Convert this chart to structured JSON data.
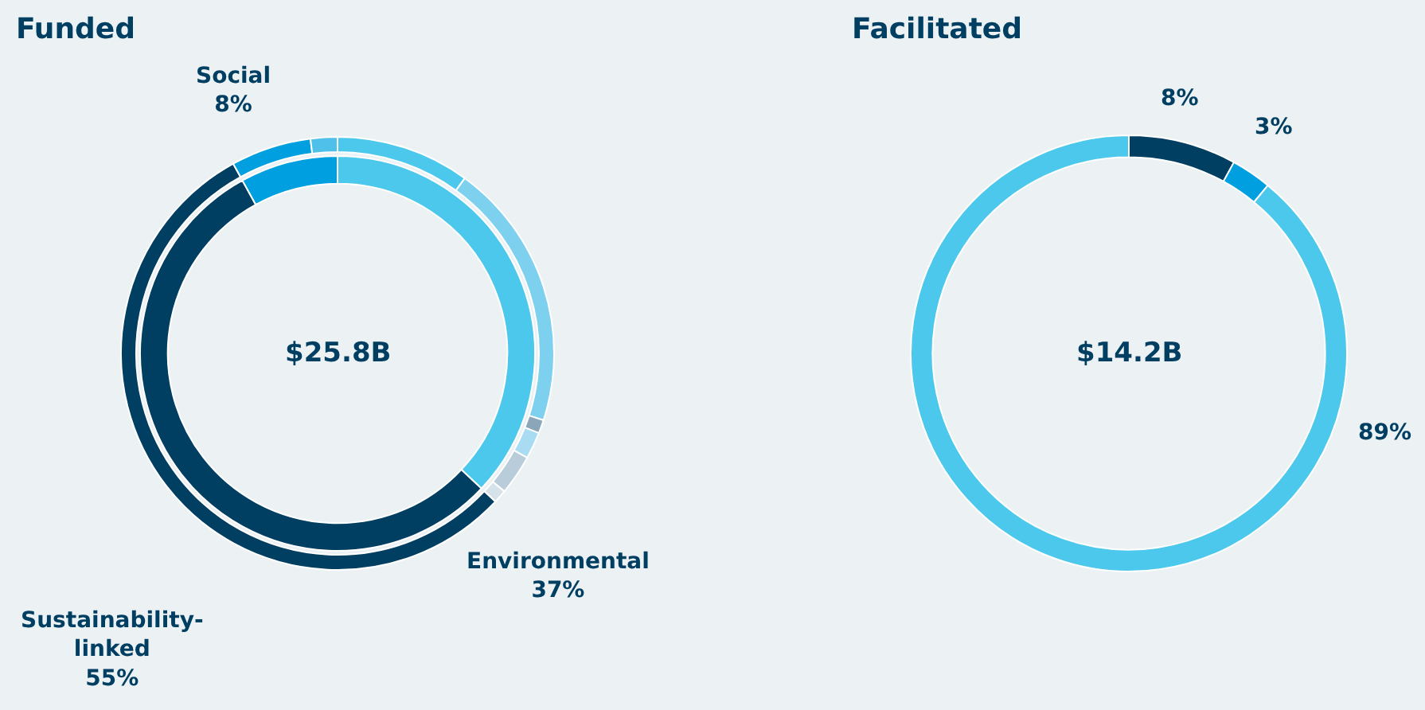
{
  "chart_data": [
    {
      "type": "donut",
      "title": "Funded",
      "categories": [
        "Environmental",
        null,
        null,
        null,
        null,
        null,
        "Sustainability-linked",
        "Social",
        null
      ],
      "annotations": [
        "$25.8B"
      ],
      "series": [
        {
          "values": [
            37,
            null,
            null,
            null,
            null,
            null,
            55,
            8,
            null
          ],
          "value_labels": [
            "37%",
            null,
            null,
            null,
            null,
            null,
            "55%",
            "8%",
            null
          ],
          "colors": [
            "#4cc8ec",
            null,
            null,
            null,
            null,
            null,
            "#003f62",
            "#009fdf",
            null
          ]
        },
        {
          "values": [
            10,
            20,
            1,
            2,
            3,
            1,
            55,
            6,
            2
          ],
          "colors": [
            "#4cc8ec",
            "#7dd0ee",
            "#8aa6b8",
            "#a9dcf2",
            "#b8cdd9",
            "#d6e2ea",
            "#003f62",
            "#009fdf",
            "#4fc0ea"
          ]
        }
      ]
    },
    {
      "type": "donut",
      "title": "Facilitated",
      "categories": [
        null,
        null,
        null
      ],
      "values": [
        8,
        3,
        89
      ],
      "value_labels": [
        "8%",
        "3%",
        "89%"
      ],
      "colors": [
        "#003f62",
        "#009fdf",
        "#4cc8ec"
      ],
      "annotations": [
        "$14.2B"
      ]
    }
  ]
}
